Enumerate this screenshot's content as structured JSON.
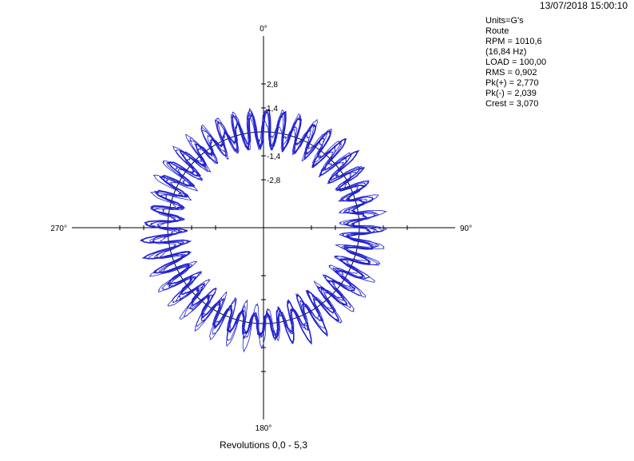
{
  "header": {
    "timestamp": "13/07/2018 15:00:10"
  },
  "info_panel": [
    "Units=G's",
    "Route",
    "RPM = 1010,6",
    "(16,84 Hz)",
    "LOAD = 100,00",
    "RMS = 0,902",
    "Pk(+) = 2,770",
    "Pk(-) = 2,039",
    "Crest = 3,070"
  ],
  "footer": {
    "revolutions": "Revolutions 0,0 - 5,3"
  },
  "chart_data": {
    "type": "line",
    "subtype": "polar",
    "angle_labels": [
      "0°",
      "90°",
      "180°",
      "270°"
    ],
    "radial_tick_labels": [
      "2,8",
      "1,4",
      "-1,4",
      "-2,8"
    ],
    "radial_range": [
      -5.6,
      5.6
    ],
    "reference_circle": 0,
    "series_color": "#2020d0",
    "lobes": 44,
    "revolutions": [
      0.0,
      5.3
    ],
    "peak_positive": 2.77,
    "peak_negative": -2.039
  }
}
